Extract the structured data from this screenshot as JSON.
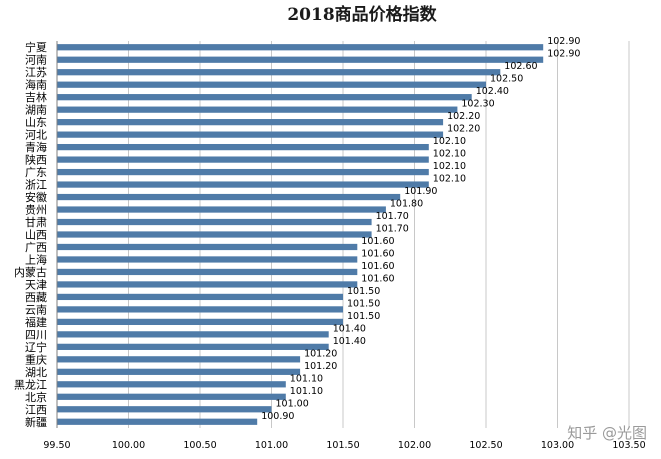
{
  "chart_data": {
    "type": "bar",
    "orientation": "horizontal",
    "title": "2018商品价格指数",
    "categories": [
      "宁夏",
      "河南",
      "江苏",
      "海南",
      "吉林",
      "湖南",
      "山东",
      "河北",
      "青海",
      "陕西",
      "广东",
      "浙江",
      "安徽",
      "贵州",
      "甘肃",
      "山西",
      "广西",
      "上海",
      "内蒙古",
      "天津",
      "西藏",
      "云南",
      "福建",
      "四川",
      "辽宁",
      "重庆",
      "湖北",
      "黑龙江",
      "北京",
      "江西",
      "新疆"
    ],
    "values": [
      102.9,
      102.9,
      102.6,
      102.5,
      102.4,
      102.3,
      102.2,
      102.2,
      102.1,
      102.1,
      102.1,
      102.1,
      101.9,
      101.8,
      101.7,
      101.7,
      101.6,
      101.6,
      101.6,
      101.6,
      101.5,
      101.5,
      101.5,
      101.4,
      101.4,
      101.2,
      101.2,
      101.1,
      101.1,
      101.0,
      100.9
    ],
    "value_labels": [
      "102.90",
      "102.90",
      "102.60",
      "102.50",
      "102.40",
      "102.30",
      "102.20",
      "102.20",
      "102.10",
      "102.10",
      "102.10",
      "102.10",
      "101.90",
      "101.80",
      "101.70",
      "101.70",
      "101.60",
      "101.60",
      "101.60",
      "101.60",
      "101.50",
      "101.50",
      "101.50",
      "101.40",
      "101.40",
      "101.20",
      "101.20",
      "101.10",
      "101.10",
      "101.00",
      "100.90"
    ],
    "xlim": [
      99.5,
      103.5
    ],
    "xticks": [
      "99.50",
      "100.00",
      "100.50",
      "101.00",
      "101.50",
      "102.00",
      "102.50",
      "103.00",
      "103.50"
    ],
    "grid": true,
    "bar_color": "#4f7ba8"
  },
  "watermark": "知乎 @光图"
}
